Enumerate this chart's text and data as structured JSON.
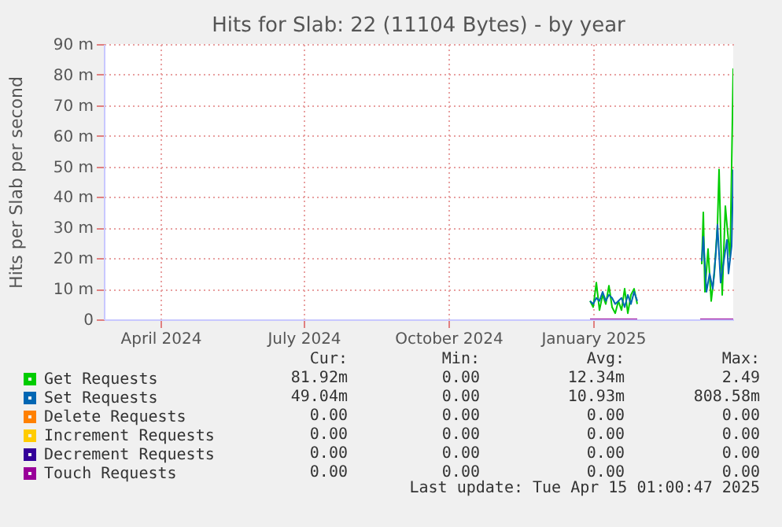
{
  "chart_data": {
    "type": "line",
    "title": "Hits for Slab: 22 (11104 Bytes) - by year",
    "ylabel": "Hits per Slab per second",
    "xlim": [
      "2024-03-11",
      "2025-04-15"
    ],
    "xticks": [
      {
        "value": "2024-04-16",
        "label": "April 2024"
      },
      {
        "value": "2024-07-16",
        "label": "July 2024"
      },
      {
        "value": "2024-10-16",
        "label": "October 2024"
      },
      {
        "value": "2025-01-16",
        "label": "January 2025"
      }
    ],
    "ylim": [
      0,
      90
    ],
    "yticks": [
      {
        "value": 0,
        "label": "0"
      },
      {
        "value": 10,
        "label": "10 m"
      },
      {
        "value": 20,
        "label": "20 m"
      },
      {
        "value": 30,
        "label": "30 m"
      },
      {
        "value": 40,
        "label": "40 m"
      },
      {
        "value": 50,
        "label": "50 m"
      },
      {
        "value": 60,
        "label": "60 m"
      },
      {
        "value": 70,
        "label": "70 m"
      },
      {
        "value": 80,
        "label": "80 m"
      },
      {
        "value": 90,
        "label": "90 m"
      }
    ],
    "grid": true,
    "legend": "bottom",
    "series": [
      {
        "name": "Get Requests",
        "color": "#00cc00",
        "x": [
          "2025-01-14",
          "2025-01-16",
          "2025-01-18",
          "2025-01-20",
          "2025-01-22",
          "2025-01-24",
          "2025-01-26",
          "2025-01-28",
          "2025-01-30",
          "2025-02-01",
          "2025-02-03",
          "2025-02-05",
          "2025-02-07",
          "2025-02-09",
          "2025-02-11",
          "2025-02-13",
          "2025-03-01",
          "2025-03-26",
          "2025-03-27",
          "2025-03-28",
          "2025-03-30",
          "2025-04-01",
          "2025-04-03",
          "2025-04-05",
          "2025-04-06",
          "2025-04-08",
          "2025-04-10",
          "2025-04-11",
          "2025-04-13",
          "2025-04-14",
          "2025-04-15"
        ],
        "values": [
          6,
          4,
          12,
          3,
          8,
          5,
          11,
          4,
          2,
          6,
          3,
          10,
          2,
          8,
          10,
          5,
          null,
          18,
          35,
          9,
          23,
          6,
          15,
          31,
          49,
          8,
          37,
          31,
          20,
          50,
          82
        ]
      },
      {
        "name": "Set Requests",
        "color": "#0066b3",
        "x": [
          "2025-01-14",
          "2025-01-16",
          "2025-01-18",
          "2025-01-20",
          "2025-01-22",
          "2025-01-24",
          "2025-01-26",
          "2025-01-28",
          "2025-01-30",
          "2025-02-01",
          "2025-02-03",
          "2025-02-05",
          "2025-02-07",
          "2025-02-09",
          "2025-02-11",
          "2025-02-13",
          "2025-03-01",
          "2025-03-26",
          "2025-03-27",
          "2025-03-29",
          "2025-03-31",
          "2025-04-02",
          "2025-04-04",
          "2025-04-05",
          "2025-04-07",
          "2025-04-09",
          "2025-04-11",
          "2025-04-12",
          "2025-04-14",
          "2025-04-15"
        ],
        "values": [
          6,
          5,
          7,
          6,
          9,
          6,
          8,
          7,
          5,
          6,
          7,
          4,
          8,
          5,
          9,
          6,
          null,
          19,
          27,
          9,
          15,
          10,
          22,
          31,
          12,
          19,
          26,
          15,
          24,
          49
        ]
      },
      {
        "name": "Delete Requests",
        "color": "#ff8000"
      },
      {
        "name": "Increment Requests",
        "color": "#ffcc00"
      },
      {
        "name": "Decrement Requests",
        "color": "#330099"
      },
      {
        "name": "Touch Requests",
        "color": "#990099",
        "x": [
          "2025-01-14",
          "2025-02-13",
          "2025-03-01",
          "2025-03-25",
          "2025-04-15"
        ],
        "values": [
          0,
          0,
          null,
          0,
          0
        ]
      }
    ],
    "annotations": [
      "Cur:",
      "Min:",
      "Avg:",
      "Max:",
      "81.92m",
      "0.00",
      "12.34m",
      "2.49",
      "49.04m",
      "0.00",
      "10.93m",
      "808.58m",
      "0.00",
      "0.00",
      "0.00",
      "0.00",
      "0.00",
      "0.00",
      "0.00",
      "0.00",
      "0.00",
      "0.00",
      "0.00",
      "0.00",
      "0.00",
      "0.00",
      "0.00",
      "0.00",
      "Last update: Tue Apr 15 01:00:47 2025"
    ]
  }
}
